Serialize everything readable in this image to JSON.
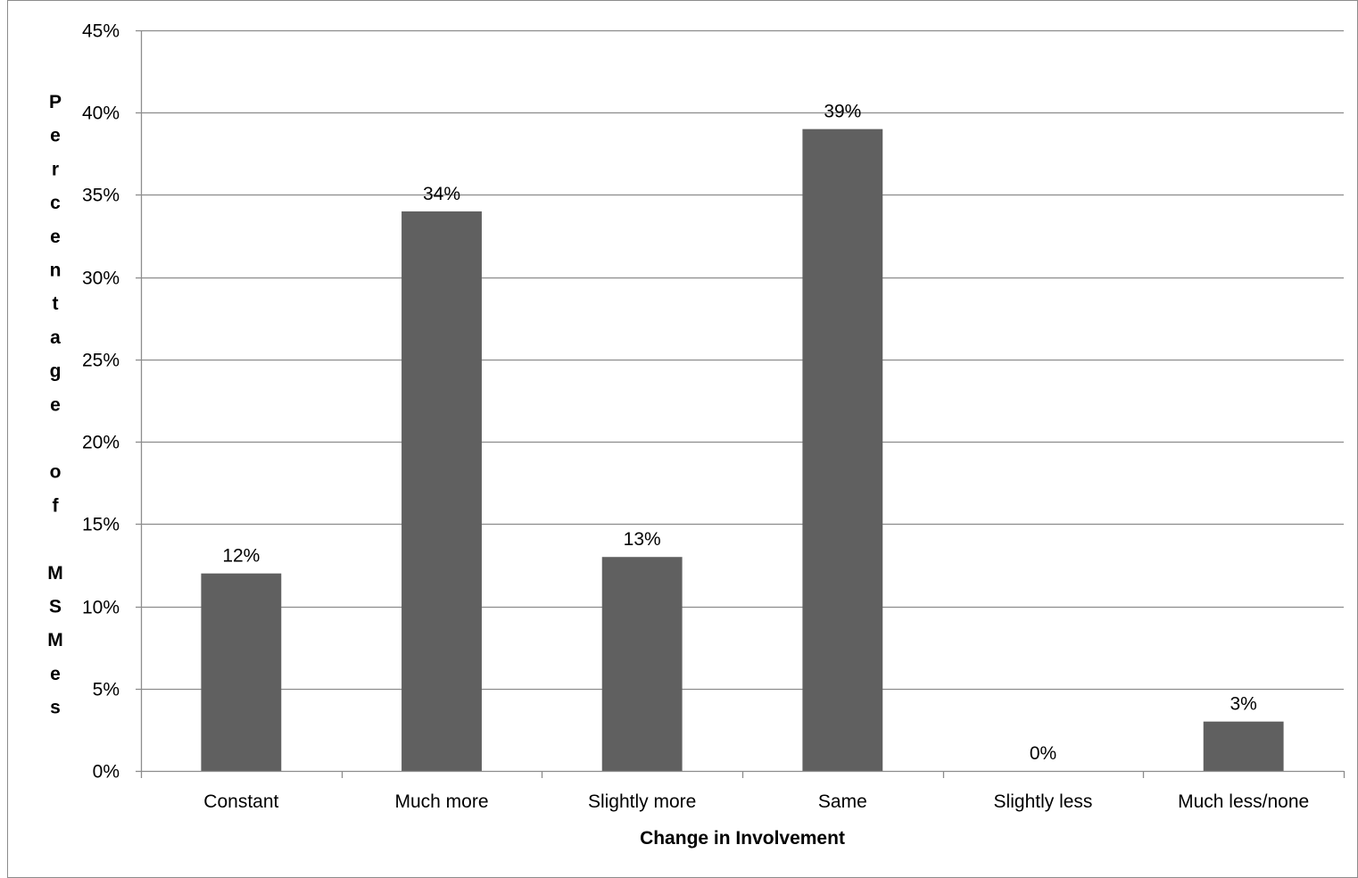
{
  "chart_data": {
    "type": "bar",
    "title": "",
    "xlabel": "Change in Involvement",
    "ylabel": "Percentage of MSMes",
    "categories": [
      "Constant",
      "Much more",
      "Slightly more",
      "Same",
      "Slightly less",
      "Much less/none"
    ],
    "values": [
      12,
      34,
      13,
      39,
      0,
      3
    ],
    "data_labels": [
      "12%",
      "34%",
      "13%",
      "39%",
      "0%",
      "3%"
    ],
    "ylim": [
      0,
      45
    ],
    "yticks": [
      0,
      5,
      10,
      15,
      20,
      25,
      30,
      35,
      40,
      45
    ],
    "ytick_labels": [
      "0%",
      "5%",
      "10%",
      "15%",
      "20%",
      "25%",
      "30%",
      "35%",
      "40%",
      "45%"
    ],
    "grid": true,
    "legend": "none",
    "colors": {
      "bar": "#606060",
      "grid": "#8c8c8c",
      "axis": "#8c8c8c",
      "frame": "#8c8c8c"
    }
  }
}
